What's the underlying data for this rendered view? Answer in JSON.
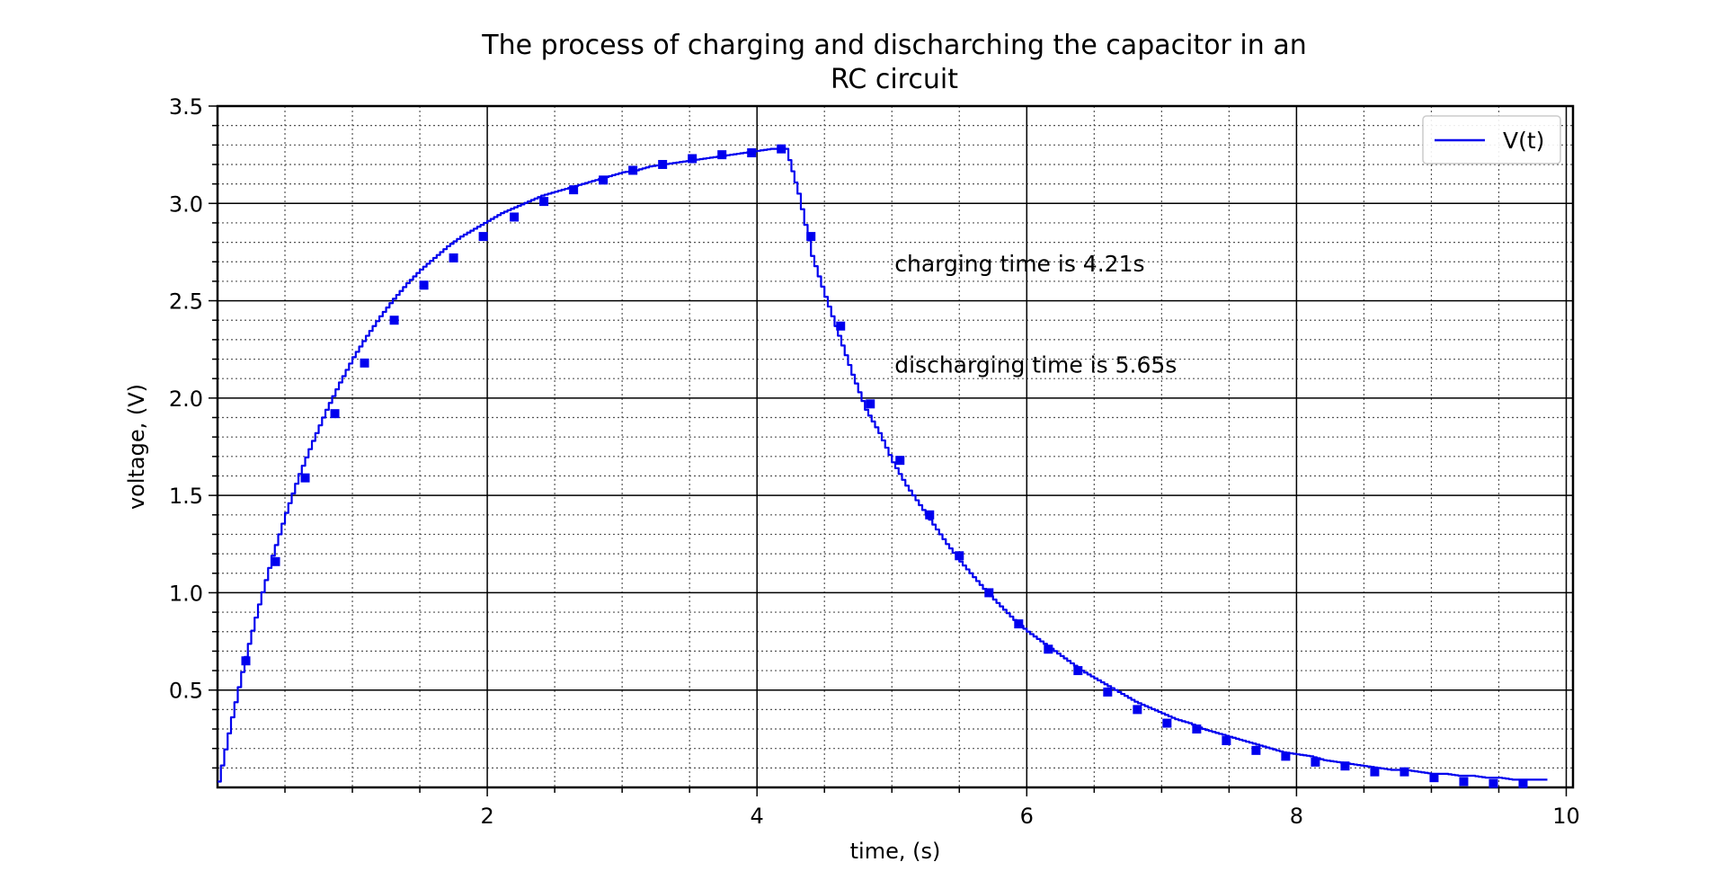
{
  "chart_data": {
    "type": "line",
    "title_lines": [
      "The process of charging and discharching the capacitor in an",
      "RC circuit"
    ],
    "xlabel": "time, (s)",
    "ylabel": "voltage, (V)",
    "xlim": [
      0,
      10.05
    ],
    "ylim": [
      0,
      3.5
    ],
    "x_ticks": [
      2,
      4,
      6,
      8,
      10
    ],
    "x_tick_labels": [
      "2",
      "4",
      "6",
      "8",
      "10"
    ],
    "y_ticks": [
      0.5,
      1.0,
      1.5,
      2.0,
      2.5,
      3.0,
      3.5
    ],
    "y_tick_labels": [
      "0.5",
      "1.0",
      "1.5",
      "2.0",
      "2.5",
      "3.0",
      "3.5"
    ],
    "x_minor_step": 0.5,
    "y_minor_step": 0.1,
    "grid": true,
    "legend_position": "top-right",
    "colors": {
      "series": "#0000ee",
      "grid_major": "#000000",
      "grid_minor": "#555555"
    },
    "annotations": [
      {
        "text": "charging time is 4.21s",
        "x": 5.02,
        "y": 2.65
      },
      {
        "text": "discharging time is 5.65s",
        "x": 5.02,
        "y": 2.13
      }
    ],
    "series": [
      {
        "name": "V(t)",
        "x": [
          0.0,
          0.1,
          0.2,
          0.3,
          0.4,
          0.5,
          0.6,
          0.7,
          0.8,
          0.9,
          1.0,
          1.1,
          1.2,
          1.3,
          1.4,
          1.5,
          1.6,
          1.7,
          1.8,
          1.9,
          2.0,
          2.1,
          2.2,
          2.3,
          2.4,
          2.5,
          2.6,
          2.7,
          2.8,
          2.9,
          3.0,
          3.1,
          3.2,
          3.3,
          3.4,
          3.5,
          3.6,
          3.7,
          3.8,
          3.9,
          4.0,
          4.1,
          4.21,
          4.3,
          4.4,
          4.5,
          4.6,
          4.7,
          4.8,
          4.9,
          5.0,
          5.1,
          5.2,
          5.3,
          5.4,
          5.5,
          5.6,
          5.7,
          5.8,
          5.9,
          6.0,
          6.1,
          6.2,
          6.3,
          6.4,
          6.5,
          6.6,
          6.7,
          6.8,
          6.9,
          7.0,
          7.1,
          7.2,
          7.3,
          7.4,
          7.5,
          7.6,
          7.7,
          7.8,
          7.9,
          8.0,
          8.1,
          8.2,
          8.3,
          8.4,
          8.5,
          8.6,
          8.7,
          8.8,
          8.9,
          9.0,
          9.1,
          9.2,
          9.3,
          9.4,
          9.5,
          9.6,
          9.7,
          9.8,
          9.86
        ],
        "y": [
          0.03,
          0.36,
          0.67,
          0.94,
          1.19,
          1.41,
          1.61,
          1.78,
          1.94,
          2.08,
          2.21,
          2.32,
          2.42,
          2.51,
          2.59,
          2.66,
          2.72,
          2.78,
          2.83,
          2.87,
          2.91,
          2.95,
          2.98,
          3.01,
          3.04,
          3.06,
          3.08,
          3.1,
          3.12,
          3.14,
          3.16,
          3.17,
          3.19,
          3.2,
          3.21,
          3.22,
          3.23,
          3.24,
          3.25,
          3.26,
          3.27,
          3.28,
          3.28,
          3.05,
          2.73,
          2.52,
          2.32,
          2.12,
          1.94,
          1.82,
          1.67,
          1.55,
          1.45,
          1.35,
          1.25,
          1.16,
          1.08,
          1.0,
          0.93,
          0.86,
          0.8,
          0.75,
          0.7,
          0.65,
          0.6,
          0.56,
          0.52,
          0.48,
          0.44,
          0.41,
          0.38,
          0.35,
          0.33,
          0.3,
          0.28,
          0.26,
          0.24,
          0.22,
          0.2,
          0.18,
          0.17,
          0.16,
          0.14,
          0.13,
          0.12,
          0.11,
          0.1,
          0.09,
          0.09,
          0.08,
          0.07,
          0.07,
          0.06,
          0.06,
          0.05,
          0.05,
          0.04,
          0.04,
          0.04,
          0.04
        ],
        "markers_x": [
          0.21,
          0.43,
          0.65,
          0.87,
          1.09,
          1.31,
          1.53,
          1.75,
          1.97,
          2.2,
          2.42,
          2.64,
          2.86,
          3.08,
          3.3,
          3.52,
          3.74,
          3.96,
          4.18,
          4.4,
          4.62,
          4.84,
          5.06,
          5.28,
          5.5,
          5.72,
          5.94,
          6.16,
          6.38,
          6.6,
          6.82,
          7.04,
          7.26,
          7.48,
          7.7,
          7.92,
          8.14,
          8.36,
          8.58,
          8.8,
          9.02,
          9.24,
          9.46,
          9.68
        ],
        "markers_y": [
          0.65,
          1.16,
          1.59,
          1.92,
          2.18,
          2.4,
          2.58,
          2.72,
          2.83,
          2.93,
          3.01,
          3.07,
          3.12,
          3.17,
          3.2,
          3.23,
          3.25,
          3.26,
          3.28,
          2.83,
          2.37,
          1.97,
          1.68,
          1.4,
          1.19,
          1.0,
          0.84,
          0.71,
          0.6,
          0.49,
          0.4,
          0.33,
          0.3,
          0.24,
          0.19,
          0.16,
          0.13,
          0.11,
          0.08,
          0.08,
          0.05,
          0.03,
          0.02,
          0.02
        ]
      }
    ]
  }
}
